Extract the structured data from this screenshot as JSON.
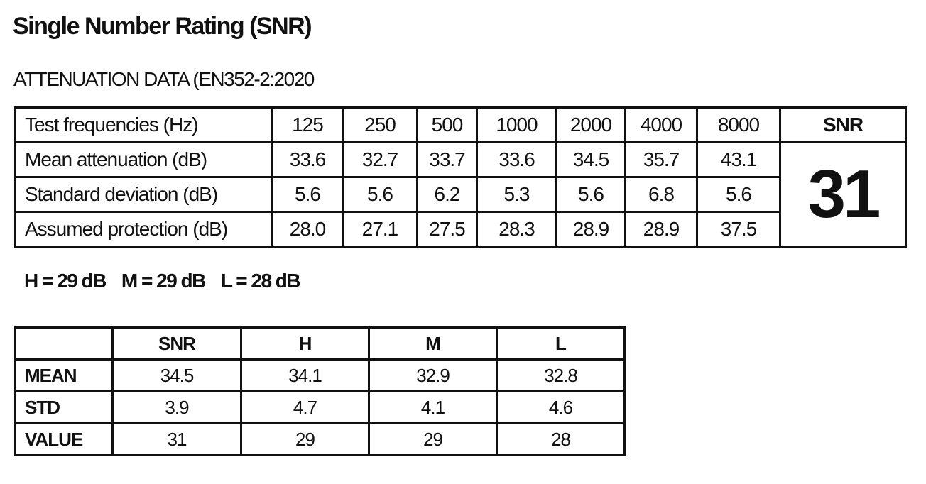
{
  "title": "Single Number Rating (SNR)",
  "subtitle": "ATTENUATION DATA (EN352-2:2020",
  "attenuation_table": {
    "header": [
      "Test frequencies (Hz)",
      "125",
      "250",
      "500",
      "1000",
      "2000",
      "4000",
      "8000",
      "SNR"
    ],
    "rows": [
      [
        "Mean attenuation (dB)",
        "33.6",
        "32.7",
        "33.7",
        "33.6",
        "34.5",
        "35.7",
        "43.1"
      ],
      [
        "Standard deviation (dB)",
        "5.6",
        "5.6",
        "6.2",
        "5.3",
        "5.6",
        "6.8",
        "5.6"
      ],
      [
        "Assumed protection (dB)",
        "28.0",
        "27.1",
        "27.5",
        "28.3",
        "28.9",
        "28.9",
        "37.5"
      ]
    ],
    "snr_value": "31"
  },
  "hml": [
    "H = 29 dB",
    "M = 29 dB",
    "L = 28 dB"
  ],
  "summary_table": {
    "header": [
      "SNR",
      "H",
      "M",
      "L"
    ],
    "rows": [
      [
        "MEAN",
        "34.5",
        "34.1",
        "32.9",
        "32.8"
      ],
      [
        "STD",
        "3.9",
        "4.7",
        "4.1",
        "4.6"
      ],
      [
        "VALUE",
        "31",
        "29",
        "29",
        "28"
      ]
    ]
  }
}
